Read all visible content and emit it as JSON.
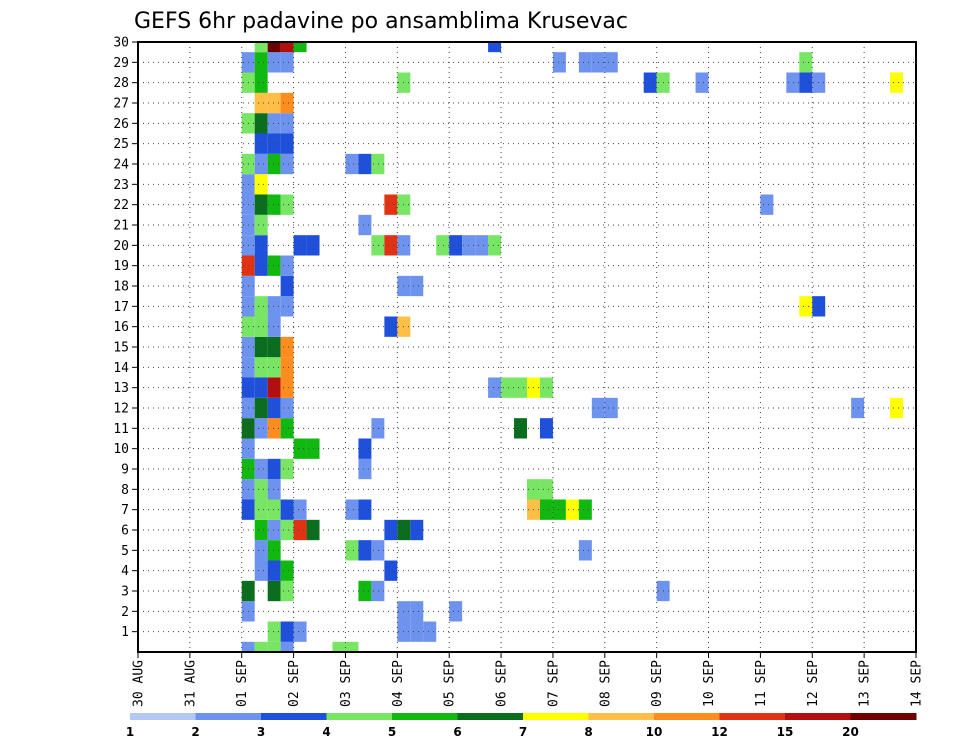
{
  "chart_data": {
    "type": "heatmap",
    "title": "GEFS 6hr padavine po ansamblima Krusevac",
    "x_tick_labels": [
      "30 AUG",
      "31 AUG",
      "01 SEP",
      "02 SEP",
      "03 SEP",
      "04 SEP",
      "05 SEP",
      "06 SEP",
      "07 SEP",
      "08 SEP",
      "09 SEP",
      "10 SEP",
      "11 SEP",
      "12 SEP",
      "13 SEP",
      "14 SEP"
    ],
    "x_range_days": [
      0,
      15
    ],
    "y_tick_labels": [
      1,
      2,
      3,
      4,
      5,
      6,
      7,
      8,
      9,
      10,
      11,
      12,
      13,
      14,
      15,
      16,
      17,
      18,
      19,
      20,
      21,
      22,
      23,
      24,
      25,
      26,
      27,
      28,
      29,
      30
    ],
    "ylim": [
      0,
      30
    ],
    "grid": true,
    "colorbar": {
      "labels": [
        "1",
        "2",
        "3",
        "4",
        "5",
        "6",
        "7",
        "8",
        "10",
        "12",
        "15",
        "20"
      ],
      "colors": [
        "#b4c8f5",
        "#6d93ee",
        "#1e50dc",
        "#78e664",
        "#10b810",
        "#0a6e1e",
        "#ffff00",
        "#ffbe46",
        "#ff8c1e",
        "#e13214",
        "#b40f0f",
        "#6e0000"
      ]
    },
    "cells": [
      [
        0,
        2,
        1
      ],
      [
        0,
        2.25,
        3
      ],
      [
        0,
        2.5,
        3
      ],
      [
        0,
        2.75,
        1
      ],
      [
        0,
        3.75,
        3
      ],
      [
        0,
        4,
        3
      ],
      [
        1,
        2.5,
        3
      ],
      [
        1,
        2.75,
        2
      ],
      [
        1,
        3,
        1
      ],
      [
        1,
        5,
        1
      ],
      [
        1,
        5.25,
        1
      ],
      [
        1,
        5.5,
        1
      ],
      [
        2,
        2,
        1
      ],
      [
        2,
        5,
        1
      ],
      [
        2,
        5.25,
        1
      ],
      [
        2,
        6,
        1
      ],
      [
        3,
        2,
        5
      ],
      [
        3,
        2.5,
        5
      ],
      [
        3,
        2.75,
        3
      ],
      [
        3,
        4.25,
        4
      ],
      [
        3,
        4.5,
        1
      ],
      [
        3,
        10,
        1
      ],
      [
        3,
        15,
        8
      ],
      [
        4,
        2.25,
        1
      ],
      [
        4,
        2.5,
        2
      ],
      [
        4,
        2.75,
        4
      ],
      [
        4,
        4.75,
        2
      ],
      [
        5,
        2.25,
        1
      ],
      [
        5,
        2.5,
        4
      ],
      [
        5,
        4,
        3
      ],
      [
        5,
        4.25,
        2
      ],
      [
        5,
        4.5,
        1
      ],
      [
        5,
        8.5,
        1
      ],
      [
        6,
        2.25,
        4
      ],
      [
        6,
        2.5,
        1
      ],
      [
        6,
        2.75,
        3
      ],
      [
        6,
        3,
        9
      ],
      [
        6,
        3.25,
        5
      ],
      [
        6,
        4.75,
        2
      ],
      [
        6,
        5,
        5
      ],
      [
        6,
        5.25,
        2
      ],
      [
        7,
        2,
        2
      ],
      [
        7,
        2.25,
        3
      ],
      [
        7,
        2.5,
        3
      ],
      [
        7,
        2.75,
        2
      ],
      [
        7,
        3,
        1
      ],
      [
        7,
        4,
        1
      ],
      [
        7,
        4.25,
        2
      ],
      [
        7,
        7.5,
        7
      ],
      [
        7,
        7.75,
        4
      ],
      [
        7,
        8,
        4
      ],
      [
        7,
        8.25,
        6
      ],
      [
        7,
        8.5,
        4
      ],
      [
        8,
        2,
        1
      ],
      [
        8,
        2.25,
        3
      ],
      [
        8,
        2.5,
        1
      ],
      [
        8,
        7.5,
        3
      ],
      [
        8,
        7.75,
        3
      ],
      [
        9,
        2,
        4
      ],
      [
        9,
        2.25,
        1
      ],
      [
        9,
        2.5,
        2
      ],
      [
        9,
        2.75,
        3
      ],
      [
        9,
        4.25,
        1
      ],
      [
        10,
        2,
        1
      ],
      [
        10,
        3,
        4
      ],
      [
        10,
        3.25,
        4
      ],
      [
        10,
        4.25,
        2
      ],
      [
        11,
        2,
        5
      ],
      [
        11,
        2.25,
        1
      ],
      [
        11,
        2.5,
        8
      ],
      [
        11,
        2.75,
        4
      ],
      [
        11,
        4.5,
        1
      ],
      [
        11,
        7.25,
        5
      ],
      [
        11,
        7.75,
        2
      ],
      [
        12,
        2,
        1
      ],
      [
        12,
        2.25,
        5
      ],
      [
        12,
        2.5,
        2
      ],
      [
        12,
        2.75,
        1
      ],
      [
        12,
        8.75,
        1
      ],
      [
        12,
        9,
        1
      ],
      [
        12,
        13.75,
        1
      ],
      [
        12,
        14.5,
        6
      ],
      [
        13,
        2,
        2
      ],
      [
        13,
        2.25,
        2
      ],
      [
        13,
        2.5,
        10
      ],
      [
        13,
        2.75,
        8
      ],
      [
        13,
        6.75,
        1
      ],
      [
        13,
        7,
        3
      ],
      [
        13,
        7.25,
        3
      ],
      [
        13,
        7.5,
        6
      ],
      [
        13,
        7.75,
        3
      ],
      [
        14,
        2,
        1
      ],
      [
        14,
        2.25,
        3
      ],
      [
        14,
        2.5,
        3
      ],
      [
        14,
        2.75,
        8
      ],
      [
        15,
        2,
        1
      ],
      [
        15,
        2.25,
        5
      ],
      [
        15,
        2.5,
        5
      ],
      [
        15,
        2.75,
        8
      ],
      [
        16,
        2,
        3
      ],
      [
        16,
        2.25,
        3
      ],
      [
        16,
        2.5,
        1
      ],
      [
        16,
        4.75,
        2
      ],
      [
        16,
        5,
        7
      ],
      [
        17,
        2,
        1
      ],
      [
        17,
        2.25,
        3
      ],
      [
        17,
        2.5,
        1
      ],
      [
        17,
        2.75,
        1
      ],
      [
        17,
        12.75,
        6
      ],
      [
        17,
        13,
        2
      ],
      [
        18,
        2,
        1
      ],
      [
        18,
        2.75,
        2
      ],
      [
        18,
        5,
        1
      ],
      [
        18,
        5.25,
        1
      ],
      [
        19,
        2,
        9
      ],
      [
        19,
        2.25,
        2
      ],
      [
        19,
        2.5,
        4
      ],
      [
        19,
        2.75,
        1
      ],
      [
        20,
        2,
        1
      ],
      [
        20,
        2.25,
        2
      ],
      [
        20,
        3,
        2
      ],
      [
        20,
        3.25,
        2
      ],
      [
        20,
        4.5,
        3
      ],
      [
        20,
        4.75,
        9
      ],
      [
        20,
        5,
        1
      ],
      [
        20,
        5.75,
        3
      ],
      [
        20,
        6,
        2
      ],
      [
        20,
        6.25,
        1
      ],
      [
        20,
        6.5,
        1
      ],
      [
        20,
        6.75,
        3
      ],
      [
        21,
        2,
        1
      ],
      [
        21,
        2.25,
        3
      ],
      [
        21,
        4.25,
        1
      ],
      [
        22,
        2,
        1
      ],
      [
        22,
        2.25,
        5
      ],
      [
        22,
        2.5,
        4
      ],
      [
        22,
        2.75,
        3
      ],
      [
        22,
        4.75,
        9
      ],
      [
        22,
        5,
        3
      ],
      [
        22,
        12,
        1
      ],
      [
        23,
        2,
        1
      ],
      [
        23,
        2.25,
        6
      ],
      [
        24,
        2,
        3
      ],
      [
        24,
        2.25,
        1
      ],
      [
        24,
        2.5,
        4
      ],
      [
        24,
        2.75,
        1
      ],
      [
        24,
        4,
        1
      ],
      [
        24,
        4.25,
        2
      ],
      [
        24,
        4.5,
        3
      ],
      [
        25,
        2.25,
        2
      ],
      [
        25,
        2.5,
        2
      ],
      [
        25,
        2.75,
        2
      ],
      [
        26,
        2,
        3
      ],
      [
        26,
        2.25,
        5
      ],
      [
        26,
        2.5,
        1
      ],
      [
        26,
        2.75,
        1
      ],
      [
        27,
        2.25,
        7
      ],
      [
        27,
        2.5,
        7
      ],
      [
        27,
        2.75,
        8
      ],
      [
        28,
        2,
        3
      ],
      [
        28,
        2.25,
        4
      ],
      [
        28,
        5,
        3
      ],
      [
        28,
        9.75,
        2
      ],
      [
        28,
        10,
        3
      ],
      [
        28,
        10.75,
        1
      ],
      [
        28,
        12.5,
        1
      ],
      [
        28,
        12.75,
        2
      ],
      [
        28,
        13,
        1
      ],
      [
        28,
        14.5,
        6
      ],
      [
        29,
        2,
        1
      ],
      [
        29,
        2.25,
        4
      ],
      [
        29,
        2.5,
        1
      ],
      [
        29,
        2.75,
        1
      ],
      [
        29,
        8,
        1
      ],
      [
        29,
        8.5,
        1
      ],
      [
        29,
        8.75,
        1
      ],
      [
        29,
        9,
        1
      ],
      [
        29,
        12.75,
        3
      ],
      [
        30,
        2.25,
        3
      ],
      [
        30,
        2.5,
        11
      ],
      [
        30,
        2.75,
        10
      ],
      [
        30,
        3,
        4
      ],
      [
        30,
        6.75,
        2
      ]
    ]
  }
}
